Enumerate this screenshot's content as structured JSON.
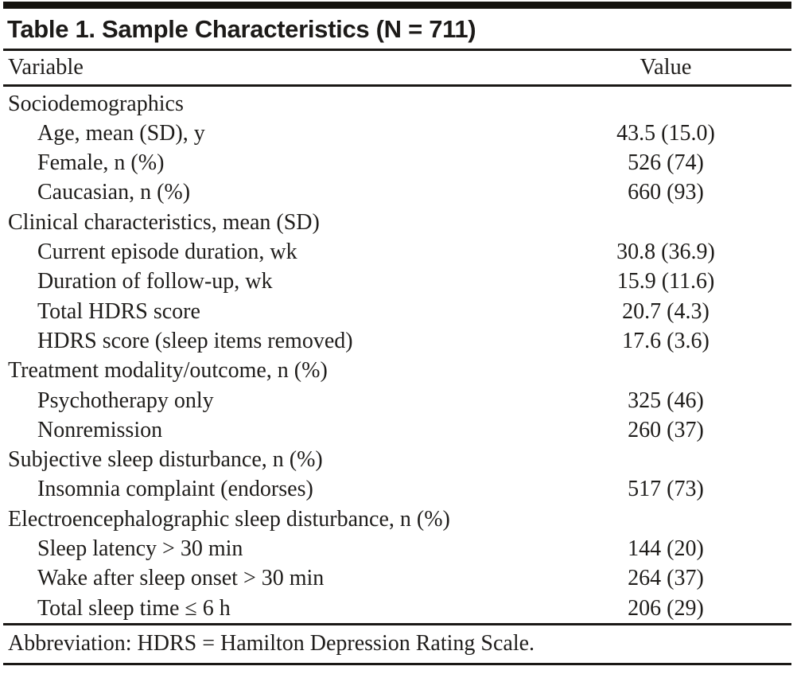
{
  "table": {
    "title": "Table 1. Sample Characteristics (N = 711)",
    "columns": {
      "variable": "Variable",
      "value": "Value"
    },
    "sections": [
      {
        "header": "Sociodemographics",
        "rows": [
          {
            "label": "Age, mean (SD), y",
            "value": "43.5 (15.0)"
          },
          {
            "label": "Female, n (%)",
            "value": "526 (74)"
          },
          {
            "label": "Caucasian, n (%)",
            "value": "660 (93)"
          }
        ]
      },
      {
        "header": "Clinical characteristics, mean (SD)",
        "rows": [
          {
            "label": "Current episode duration, wk",
            "value": "30.8 (36.9)"
          },
          {
            "label": "Duration of follow-up, wk",
            "value": "15.9 (11.6)"
          },
          {
            "label": "Total HDRS score",
            "value": "20.7 (4.3)"
          },
          {
            "label": "HDRS score (sleep items removed)",
            "value": "17.6 (3.6)"
          }
        ]
      },
      {
        "header": "Treatment modality/outcome, n (%)",
        "rows": [
          {
            "label": "Psychotherapy only",
            "value": "325 (46)"
          },
          {
            "label": "Nonremission",
            "value": "260 (37)"
          }
        ]
      },
      {
        "header": "Subjective sleep disturbance, n (%)",
        "rows": [
          {
            "label": "Insomnia complaint (endorses)",
            "value": "517 (73)"
          }
        ]
      },
      {
        "header": "Electroencephalographic sleep disturbance, n (%)",
        "rows": [
          {
            "label": "Sleep latency > 30 min",
            "value": "144 (20)"
          },
          {
            "label": "Wake after sleep onset > 30 min",
            "value": "264 (37)"
          },
          {
            "label": "Total sleep time ≤ 6 h",
            "value": "206 (29)"
          }
        ]
      }
    ],
    "footnote": "Abbreviation: HDRS = Hamilton Depression Rating Scale.",
    "colors": {
      "text": "#1f1d1b",
      "rule": "#1a1815",
      "top_bar": "#15130f",
      "background": "#ffffff"
    }
  }
}
